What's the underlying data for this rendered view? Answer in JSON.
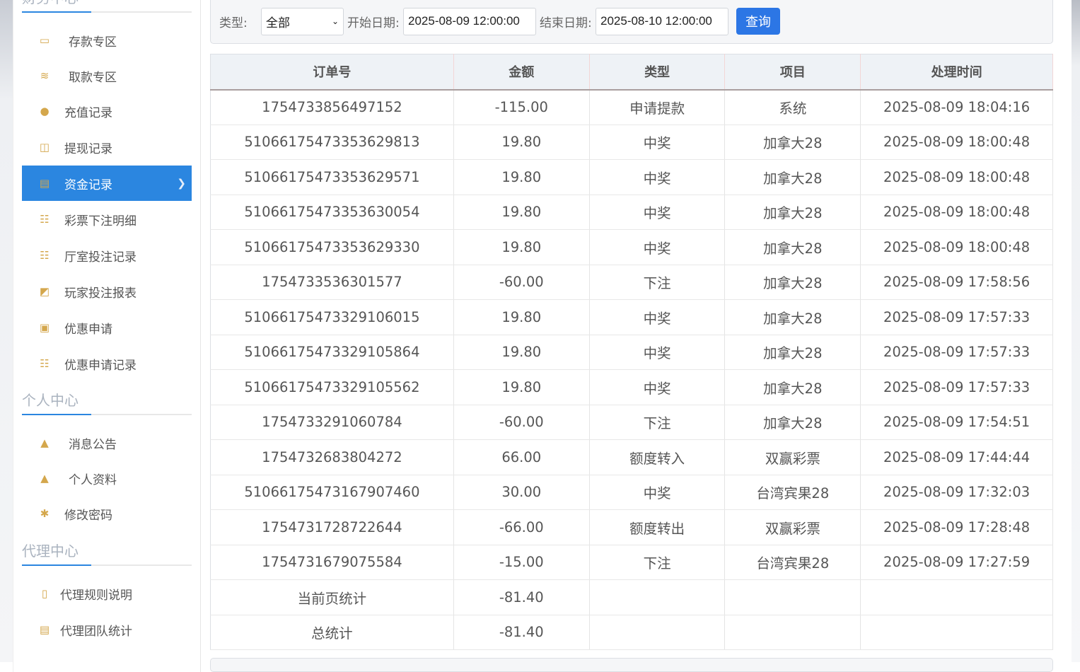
{
  "sidebar": {
    "sections": [
      {
        "title": "财务中心",
        "items": [
          {
            "label": "存款专区",
            "icon": "deposit-card-icon"
          },
          {
            "label": "取款专区",
            "icon": "withdraw-hand-icon"
          },
          {
            "label": "充值记录",
            "icon": "money-bag-icon"
          },
          {
            "label": "提现记录",
            "icon": "wallet-icon"
          },
          {
            "label": "资金记录",
            "icon": "cash-icon",
            "active": true
          },
          {
            "label": "彩票下注明细",
            "icon": "list-icon"
          },
          {
            "label": "厅室投注记录",
            "icon": "list-icon"
          },
          {
            "label": "玩家投注报表",
            "icon": "chart-icon"
          },
          {
            "label": "优惠申请",
            "icon": "gift-icon"
          },
          {
            "label": "优惠申请记录",
            "icon": "list-icon"
          }
        ]
      },
      {
        "title": "个人中心",
        "items": [
          {
            "label": "消息公告",
            "icon": "bell-icon"
          },
          {
            "label": "个人资料",
            "icon": "user-icon"
          },
          {
            "label": "修改密码",
            "icon": "gear-icon"
          }
        ]
      },
      {
        "title": "代理中心",
        "items": [
          {
            "label": "代理规则说明",
            "icon": "document-icon"
          },
          {
            "label": "代理团队统计",
            "icon": "report-icon"
          }
        ]
      }
    ],
    "accent": "#2b86e0",
    "icon_color": "#d4a74c"
  },
  "filter": {
    "type_label": "类型:",
    "type_value": "全部",
    "start_label": "开始日期:",
    "start_value": "2025-08-09 12:00:00",
    "end_label": "结束日期:",
    "end_value": "2025-08-10 12:00:00",
    "query_button": "查询"
  },
  "table": {
    "headers": [
      "订单号",
      "金额",
      "类型",
      "项目",
      "处理时间"
    ],
    "rows": [
      [
        "1754733856497152",
        "-115.00",
        "申请提款",
        "系统",
        "2025-08-09 18:04:16"
      ],
      [
        "51066175473353629813",
        "19.80",
        "中奖",
        "加拿大28",
        "2025-08-09 18:00:48"
      ],
      [
        "51066175473353629571",
        "19.80",
        "中奖",
        "加拿大28",
        "2025-08-09 18:00:48"
      ],
      [
        "51066175473353630054",
        "19.80",
        "中奖",
        "加拿大28",
        "2025-08-09 18:00:48"
      ],
      [
        "51066175473353629330",
        "19.80",
        "中奖",
        "加拿大28",
        "2025-08-09 18:00:48"
      ],
      [
        "1754733536301577",
        "-60.00",
        "下注",
        "加拿大28",
        "2025-08-09 17:58:56"
      ],
      [
        "51066175473329106015",
        "19.80",
        "中奖",
        "加拿大28",
        "2025-08-09 17:57:33"
      ],
      [
        "51066175473329105864",
        "19.80",
        "中奖",
        "加拿大28",
        "2025-08-09 17:57:33"
      ],
      [
        "51066175473329105562",
        "19.80",
        "中奖",
        "加拿大28",
        "2025-08-09 17:57:33"
      ],
      [
        "1754733291060784",
        "-60.00",
        "下注",
        "加拿大28",
        "2025-08-09 17:54:51"
      ],
      [
        "1754732683804272",
        "66.00",
        "额度转入",
        "双赢彩票",
        "2025-08-09 17:44:44"
      ],
      [
        "51066175473167907460",
        "30.00",
        "中奖",
        "台湾宾果28",
        "2025-08-09 17:32:03"
      ],
      [
        "1754731728722644",
        "-66.00",
        "额度转出",
        "双赢彩票",
        "2025-08-09 17:28:48"
      ],
      [
        "1754731679075584",
        "-15.00",
        "下注",
        "台湾宾果28",
        "2025-08-09 17:27:59"
      ],
      [
        "当前页统计",
        "-81.40",
        "",
        "",
        ""
      ],
      [
        "总统计",
        "-81.40",
        "",
        "",
        ""
      ]
    ]
  }
}
